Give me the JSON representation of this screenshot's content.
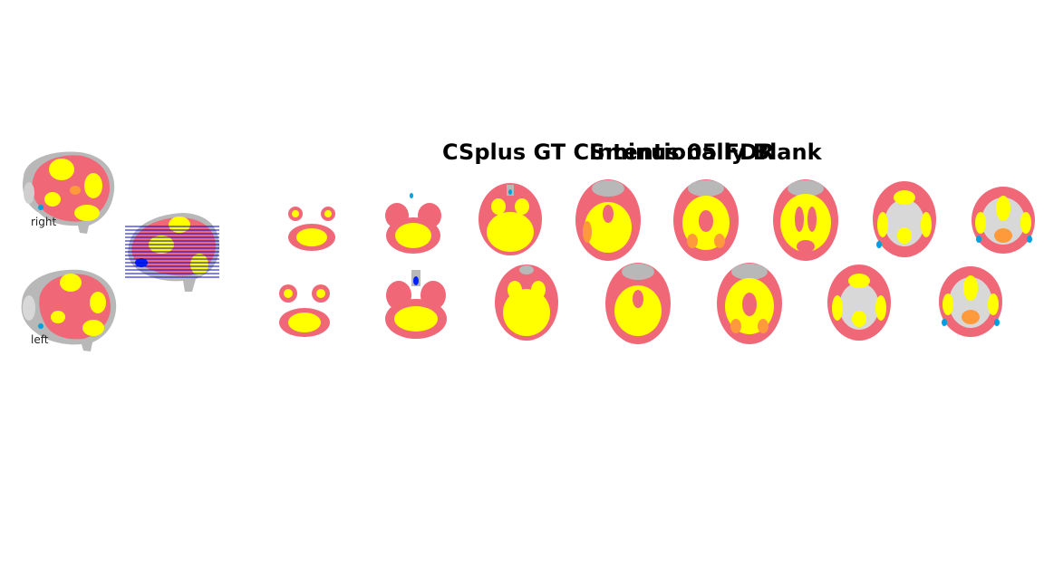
{
  "figure": {
    "title_overlap_a": "CSplus GT CSminus 05 FDR",
    "title_overlap_b": "Intentionally Blank"
  },
  "sagittal": {
    "right_label": "right",
    "left_label": "left"
  },
  "colors": {
    "activation_low": "#f06878",
    "activation_high": "#ffff00",
    "activation_mid": "#ff9a3c",
    "deactivation": "#00a0e0",
    "deactivation_strong": "#0020ff",
    "anatomy": "#b8b8b8",
    "slice_lines": "#0000cc"
  },
  "axial_rows": {
    "top_row_count": 8,
    "bottom_row_count": 7
  }
}
